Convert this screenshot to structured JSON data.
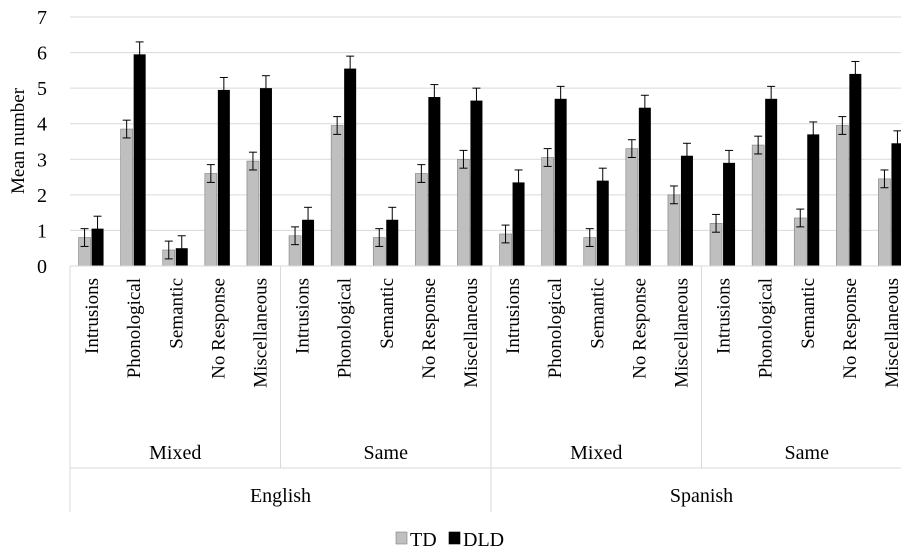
{
  "chart_data": {
    "type": "bar",
    "ylabel": "Mean number",
    "ylim": [
      0,
      7
    ],
    "yticks": [
      0,
      1,
      2,
      3,
      4,
      5,
      6,
      7
    ],
    "grid": true,
    "legend_position": "bottom",
    "error_bars": true,
    "languages": [
      {
        "name": "English",
        "conditions": [
          {
            "name": "Mixed",
            "categories": [
              "Intrusions",
              "Phonological",
              "Semantic",
              "No Response",
              "Miscellaneous"
            ]
          },
          {
            "name": "Same",
            "categories": [
              "Intrusions",
              "Phonological",
              "Semantic",
              "No Response",
              "Miscellaneous"
            ]
          }
        ]
      },
      {
        "name": "Spanish",
        "conditions": [
          {
            "name": "Mixed",
            "categories": [
              "Intrusions",
              "Phonological",
              "Semantic",
              "No Response",
              "Miscellaneous"
            ]
          },
          {
            "name": "Same",
            "categories": [
              "Intrusions",
              "Phonological",
              "Semantic",
              "No Response",
              "Miscellaneous"
            ]
          }
        ]
      }
    ],
    "series": [
      {
        "name": "TD",
        "color": "#bfbfbf",
        "values": [
          0.8,
          3.85,
          0.45,
          2.6,
          2.95,
          0.85,
          3.95,
          0.8,
          2.6,
          3.0,
          0.9,
          3.05,
          0.8,
          3.3,
          2.0,
          1.2,
          3.4,
          1.35,
          3.95,
          2.45
        ],
        "errors": [
          0.25,
          0.25,
          0.25,
          0.25,
          0.25,
          0.25,
          0.25,
          0.25,
          0.25,
          0.25,
          0.25,
          0.25,
          0.25,
          0.25,
          0.25,
          0.25,
          0.25,
          0.25,
          0.25,
          0.25
        ]
      },
      {
        "name": "DLD",
        "color": "#000000",
        "values": [
          1.05,
          5.95,
          0.5,
          4.95,
          5.0,
          1.3,
          5.55,
          1.3,
          4.75,
          4.65,
          2.35,
          4.7,
          2.4,
          4.45,
          3.1,
          2.9,
          4.7,
          3.7,
          5.4,
          3.45
        ],
        "errors": [
          0.35,
          0.35,
          0.35,
          0.35,
          0.35,
          0.35,
          0.35,
          0.35,
          0.35,
          0.35,
          0.35,
          0.35,
          0.35,
          0.35,
          0.35,
          0.35,
          0.35,
          0.35,
          0.35,
          0.35
        ]
      }
    ]
  }
}
